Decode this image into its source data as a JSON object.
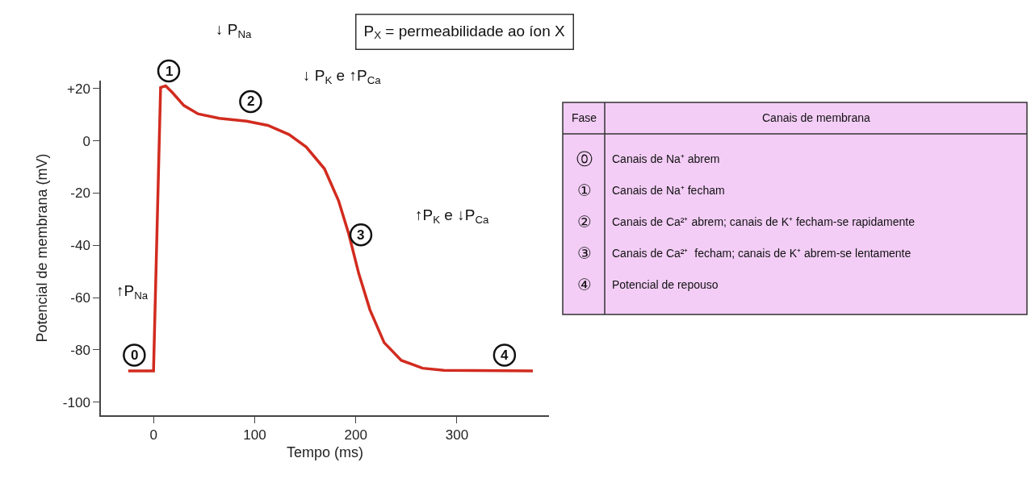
{
  "chart_data": [
    {
      "type": "line",
      "xlabel": "Tempo (ms)",
      "ylabel": "Potencial de membrana (mV)",
      "x": [
        -25,
        0,
        7,
        12,
        19,
        30,
        44,
        65,
        92,
        113,
        134,
        151,
        169,
        183,
        193,
        203,
        214,
        228,
        245,
        266,
        287,
        375
      ],
      "series": [
        {
          "color": "#d22b1f",
          "values": [
            -88,
            -88,
            20.4,
            21,
            18.3,
            13.5,
            10.3,
            8.6,
            7.5,
            5.9,
            2.4,
            -2.4,
            -10.7,
            -23,
            -35.6,
            -50.9,
            -64.7,
            -77.2,
            -84,
            -87,
            -87.8,
            -88
          ]
        }
      ],
      "xlim": [
        -52,
        391
      ],
      "ylim": [
        -105,
        23
      ],
      "xticks": [
        0,
        100,
        200,
        300
      ],
      "yticks": [
        {
          "value": 20,
          "label": "+20"
        },
        0,
        -20,
        -40,
        -60,
        -80,
        -100
      ],
      "marker": "none",
      "line_style": "solid",
      "annotations": [
        {
          "text": "0",
          "x": -19,
          "y": -82
        },
        {
          "text": "2",
          "x": 96,
          "y": 15
        },
        {
          "text": "3",
          "x": 205,
          "y": -36
        },
        {
          "text": "4",
          "x": 347,
          "y": -82
        },
        "1",
        "↓ P$_{Na}$",
        "↓ P$_{K}$ e ↑P$_{Ca}$",
        "↑P$_{K}$ e ↓P$_{Ca}$",
        "↑P$_{Na}$",
        "P$_{X}$ = permeabilidade ao íon X"
      ]
    },
    {
      "type": "other",
      "annotations": [
        "Fase",
        "Canais de membrana",
        "⓪",
        "Canais de Na⁺ abrem",
        "①",
        "Canais de Na⁺ fecham",
        "②",
        "Canais de Ca²⁺ abrem; canais de K⁺ fecham-se rapidamente",
        "③",
        "Canais de Ca²⁺  fecham; canais de K⁺ abrem-se lentamente",
        "④",
        "Potencial de repouso"
      ]
    }
  ]
}
